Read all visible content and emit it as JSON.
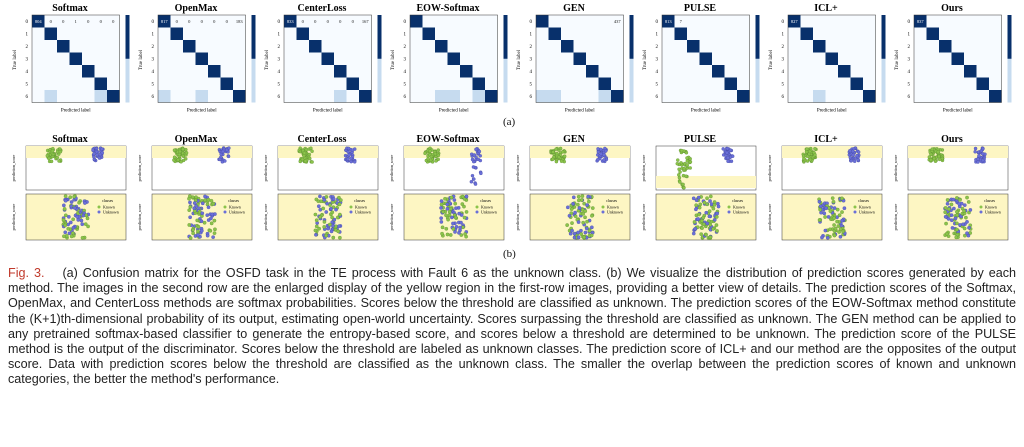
{
  "figure": {
    "panel_a_label": "(a)",
    "panel_b_label": "(b)",
    "methods": [
      "Softmax",
      "OpenMax",
      "CenterLoss",
      "EOW-Softmax",
      "GEN",
      "PULSE",
      "ICL+",
      "Ours"
    ],
    "cm_ylabel": "True label",
    "cm_xlabel": "Predicted label",
    "confusion_first_row_values": [
      [
        "804",
        "0",
        "0",
        "1",
        "0",
        "0",
        "0"
      ],
      [
        "817",
        "0",
        "0",
        "0",
        "0",
        "0",
        "183"
      ],
      [
        "833",
        "0",
        "0",
        "0",
        "0",
        "0",
        "167"
      ],
      [
        "",
        "",
        "",
        "",
        "",
        "",
        ""
      ],
      [
        "",
        "",
        "",
        "",
        "",
        "",
        "437"
      ],
      [
        "813",
        "7",
        "",
        "",
        "",
        "",
        ""
      ],
      [
        "827",
        "",
        "",
        "",
        "",
        "",
        ""
      ],
      [
        "837",
        "",
        "",
        "",
        "",
        "",
        ""
      ]
    ],
    "legend_title": "classes",
    "legend_known": "Known",
    "legend_unknown": "Unknown",
    "swarm_ylabel": "prediction_score"
  },
  "caption": {
    "label": "Fig. 3.",
    "text": "(a) Confusion matrix for the OSFD task in the TE process with Fault 6 as the unknown class. (b) We visualize the distribution of prediction scores generated by each method. The images in the second row are the enlarged display of the yellow region in the first-row images, providing a better view of details. The prediction scores of the Softmax, OpenMax, and CenterLoss methods are softmax probabilities. Scores below the threshold are classified as unknown. The prediction scores of the EOW-Softmax method constitute the (K+1)th-dimensional probability of its output, estimating open-world uncertainty. Scores surpassing the threshold are classified as unknown. The GEN method can be applied to any pretrained softmax-based classifier to generate the entropy-based score, and scores below a threshold are determined to be unknown. The prediction score of the PULSE method is the output of the discriminator. Scores below the threshold are labeled as unknown classes. The prediction score of ICL+ and our method are the opposites of the output score. Data with prediction scores below the threshold are classified as the unknown class. The smaller the overlap between the prediction scores of known and unknown categories, the better the method's performance."
  },
  "colors": {
    "cm_dark": "#08306b",
    "cm_light": "#f7fbff",
    "known": "#8bc34a",
    "unknown": "#6a6fd8",
    "highlight": "#fdf6c3",
    "caption_label": "#c0392b"
  }
}
